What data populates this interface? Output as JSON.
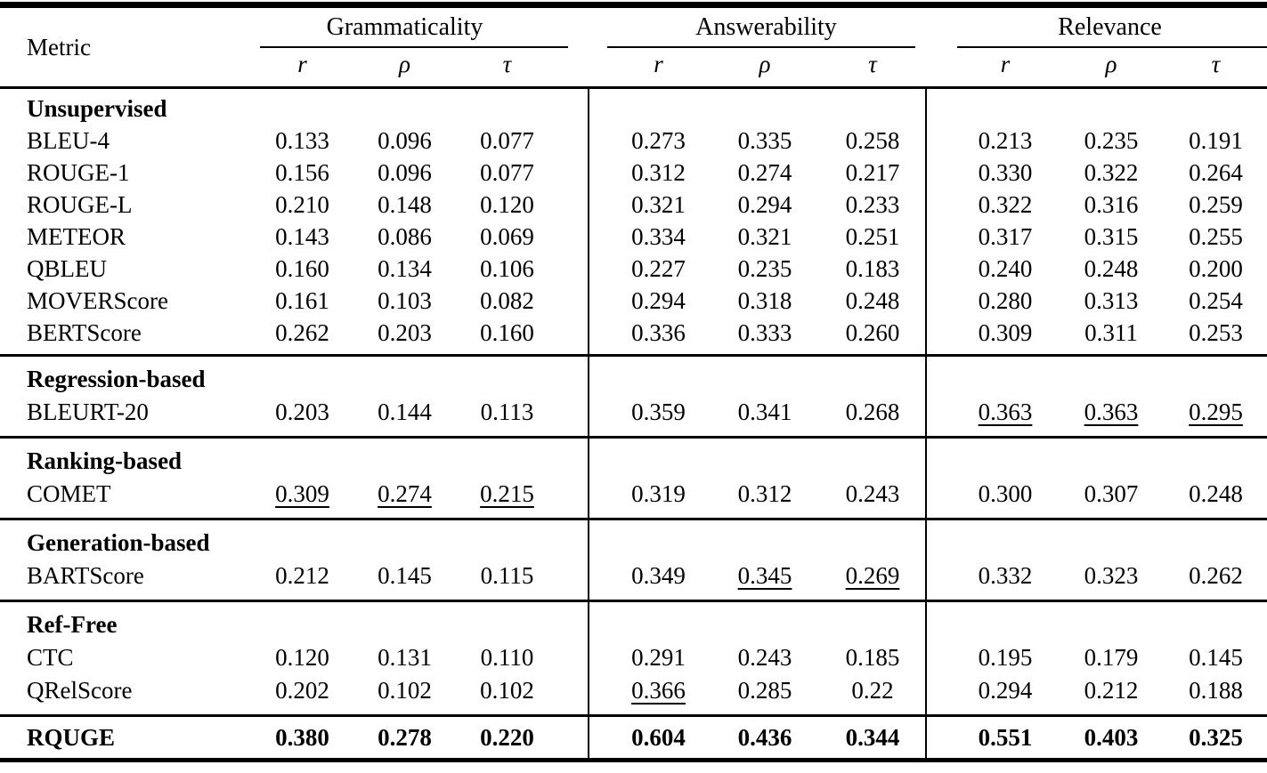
{
  "table": {
    "header": {
      "metric_label": "Metric",
      "groups": [
        {
          "label": "Grammaticality"
        },
        {
          "label": "Answerability"
        },
        {
          "label": "Relevance"
        }
      ],
      "subcolumns": [
        "r",
        "ρ",
        "τ"
      ]
    },
    "sections": [
      {
        "title": "Unsupervised",
        "rows": [
          {
            "metric": "BLEU-4",
            "values": [
              "0.133",
              "0.096",
              "0.077",
              "0.273",
              "0.335",
              "0.258",
              "0.213",
              "0.235",
              "0.191"
            ]
          },
          {
            "metric": "ROUGE-1",
            "values": [
              "0.156",
              "0.096",
              "0.077",
              "0.312",
              "0.274",
              "0.217",
              "0.330",
              "0.322",
              "0.264"
            ]
          },
          {
            "metric": "ROUGE-L",
            "values": [
              "0.210",
              "0.148",
              "0.120",
              "0.321",
              "0.294",
              "0.233",
              "0.322",
              "0.316",
              "0.259"
            ]
          },
          {
            "metric": "METEOR",
            "values": [
              "0.143",
              "0.086",
              "0.069",
              "0.334",
              "0.321",
              "0.251",
              "0.317",
              "0.315",
              "0.255"
            ]
          },
          {
            "metric": "QBLEU",
            "values": [
              "0.160",
              "0.134",
              "0.106",
              "0.227",
              "0.235",
              "0.183",
              "0.240",
              "0.248",
              "0.200"
            ]
          },
          {
            "metric": "MOVERScore",
            "values": [
              "0.161",
              "0.103",
              "0.082",
              "0.294",
              "0.318",
              "0.248",
              "0.280",
              "0.313",
              "0.254"
            ]
          },
          {
            "metric": "BERTScore",
            "values": [
              "0.262",
              "0.203",
              "0.160",
              "0.336",
              "0.333",
              "0.260",
              "0.309",
              "0.311",
              "0.253"
            ]
          }
        ]
      },
      {
        "title": "Regression-based",
        "rows": [
          {
            "metric": "BLEURT-20",
            "values": [
              "0.203",
              "0.144",
              "0.113",
              "0.359",
              "0.341",
              "0.268",
              "0.363",
              "0.363",
              "0.295"
            ],
            "underlined": [
              6,
              7,
              8
            ]
          }
        ]
      },
      {
        "title": "Ranking-based",
        "rows": [
          {
            "metric": "COMET",
            "values": [
              "0.309",
              "0.274",
              "0.215",
              "0.319",
              "0.312",
              "0.243",
              "0.300",
              "0.307",
              "0.248"
            ],
            "underlined": [
              0,
              1,
              2
            ]
          }
        ]
      },
      {
        "title": "Generation-based",
        "rows": [
          {
            "metric": "BARTScore",
            "values": [
              "0.212",
              "0.145",
              "0.115",
              "0.349",
              "0.345",
              "0.269",
              "0.332",
              "0.323",
              "0.262"
            ],
            "underlined": [
              4,
              5
            ]
          }
        ]
      },
      {
        "title": "Ref-Free",
        "rows": [
          {
            "metric": "CTC",
            "values": [
              "0.120",
              "0.131",
              "0.110",
              "0.291",
              "0.243",
              "0.185",
              "0.195",
              "0.179",
              "0.145"
            ]
          },
          {
            "metric": "QRelScore",
            "values": [
              "0.202",
              "0.102",
              "0.102",
              "0.366",
              "0.285",
              "0.22",
              "0.294",
              "0.212",
              "0.188"
            ],
            "underlined": [
              3
            ]
          }
        ]
      }
    ],
    "footer_row": {
      "metric": "RQUGE",
      "values": [
        "0.380",
        "0.278",
        "0.220",
        "0.604",
        "0.436",
        "0.344",
        "0.551",
        "0.403",
        "0.325"
      ]
    }
  }
}
